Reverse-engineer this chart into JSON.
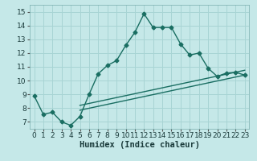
{
  "xlabel": "Humidex (Indice chaleur)",
  "ylabel": "",
  "xlim": [
    -0.5,
    23.5
  ],
  "ylim": [
    6.5,
    15.5
  ],
  "xticks": [
    0,
    1,
    2,
    3,
    4,
    5,
    6,
    7,
    8,
    9,
    10,
    11,
    12,
    13,
    14,
    15,
    16,
    17,
    18,
    19,
    20,
    21,
    22,
    23
  ],
  "yticks": [
    7,
    8,
    9,
    10,
    11,
    12,
    13,
    14,
    15
  ],
  "bg_color": "#c5e8e8",
  "grid_color": "#a8d4d4",
  "line_color": "#1a6e62",
  "curve1_x": [
    0,
    1,
    2,
    3,
    4,
    5,
    6,
    7,
    8,
    9,
    10,
    11,
    12,
    13,
    14,
    15,
    16,
    17,
    18,
    19,
    20,
    21,
    22,
    23
  ],
  "curve1_y": [
    8.9,
    7.55,
    7.7,
    7.0,
    6.75,
    7.4,
    9.0,
    10.5,
    11.1,
    11.45,
    12.55,
    13.5,
    14.85,
    13.85,
    13.85,
    13.85,
    12.65,
    11.85,
    12.0,
    10.9,
    10.3,
    10.55,
    10.6,
    10.4
  ],
  "curve2_x": [
    5,
    23
  ],
  "curve2_y": [
    7.85,
    10.4
  ],
  "curve3_x": [
    5,
    23
  ],
  "curve3_y": [
    8.2,
    10.75
  ],
  "marker": "D",
  "markersize": 2.5,
  "linewidth": 1.0,
  "tick_fontsize": 6.5,
  "xlabel_fontsize": 7.5
}
